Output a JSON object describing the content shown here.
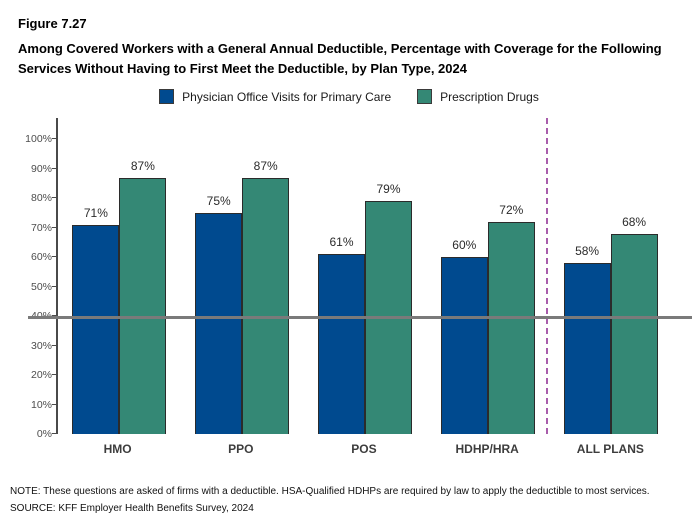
{
  "figure_label": "Figure 7.27",
  "title": "Among Covered Workers with a General Annual Deductible, Percentage with Coverage for the Following Services Without Having to First Meet the Deductible, by Plan Type, 2024",
  "notes": {
    "note": "NOTE: These questions are asked of firms with a deductible. HSA-Qualified HDHPs are required by law to apply the deductible to most services.",
    "source": "SOURCE: KFF Employer Health Benefits Survey, 2024"
  },
  "colors": {
    "series_blue": "#004a8f",
    "series_teal": "#348875",
    "separator_purple": "#a85cab"
  },
  "chart_data": {
    "type": "bar",
    "categories": [
      "HMO",
      "PPO",
      "POS",
      "HDHP/HRA",
      "ALL PLANS"
    ],
    "series": [
      {
        "name": "Physician Office Visits for Primary Care",
        "color": "#004a8f",
        "values": [
          71,
          75,
          61,
          60,
          58
        ]
      },
      {
        "name": "Prescription Drugs",
        "color": "#348875",
        "values": [
          87,
          87,
          79,
          72,
          68
        ]
      }
    ],
    "value_labels": [
      [
        "71%",
        "75%",
        "61%",
        "60%",
        "58%"
      ],
      [
        "87%",
        "87%",
        "79%",
        "72%",
        "68%"
      ]
    ],
    "ylim": [
      0,
      100
    ],
    "ytick_labels": [
      "0%",
      "10%",
      "20%",
      "30%",
      "40%",
      "50%",
      "60%",
      "70%",
      "80%",
      "90%",
      "100%"
    ],
    "ytick_values": [
      0,
      10,
      20,
      30,
      40,
      50,
      60,
      70,
      80,
      90,
      100
    ],
    "grid": false,
    "legend_position": "top-center",
    "separator": {
      "before_category": "ALL PLANS",
      "color": "#a85cab",
      "style": "dashed",
      "position_pct": 79.4
    }
  }
}
